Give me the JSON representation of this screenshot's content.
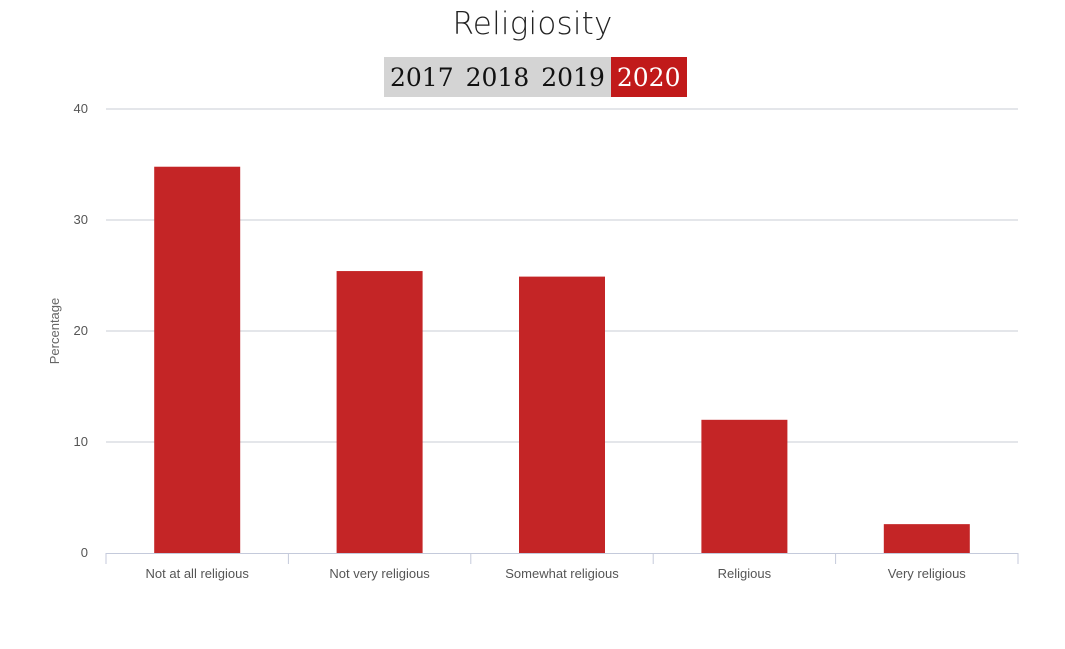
{
  "title": "Religiosity",
  "year_tabs": [
    {
      "label": "2017",
      "active": false
    },
    {
      "label": "2018",
      "active": false
    },
    {
      "label": "2019",
      "active": false
    },
    {
      "label": "2020",
      "active": true
    }
  ],
  "colors": {
    "bar": "#c42526",
    "active_tab": "#c11a1a",
    "inactive_tab": "#d4d4d4",
    "grid": "#c8ccd4"
  },
  "chart_data": {
    "type": "bar",
    "categories": [
      "Not at all religious",
      "Not very religious",
      "Somewhat religious",
      "Religious",
      "Very religious"
    ],
    "values": [
      34.8,
      25.4,
      24.9,
      12.0,
      2.6
    ],
    "xlabel": "",
    "ylabel": "Percentage",
    "ylim": [
      0,
      40
    ],
    "yticks": [
      0,
      10,
      20,
      30,
      40
    ],
    "grid": true
  }
}
